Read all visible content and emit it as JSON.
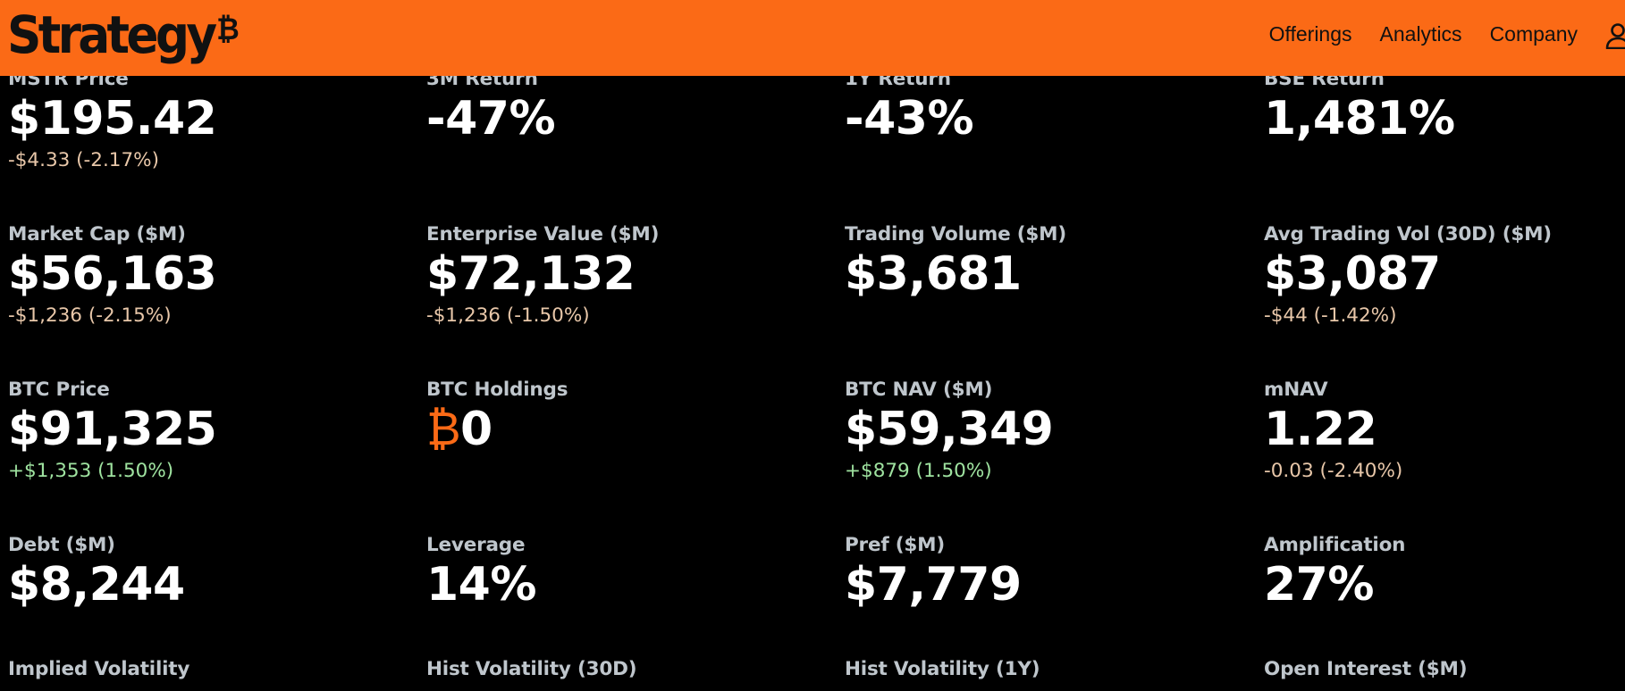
{
  "header": {
    "logo_text": "Strategy",
    "logo_mark": "₿",
    "nav": [
      "Offerings",
      "Analytics",
      "Company"
    ],
    "user_icon": "user-icon",
    "bg_color": "#fb6a16"
  },
  "metrics": [
    {
      "label": "MSTR Price",
      "value": "$195.42",
      "change": "-$4.33 (-2.17%)",
      "trend": "neg"
    },
    {
      "label": "3M Return",
      "value": "-47%",
      "change": "",
      "trend": ""
    },
    {
      "label": "1Y Return",
      "value": "-43%",
      "change": "",
      "trend": ""
    },
    {
      "label": "BSE Return",
      "value": "1,481%",
      "change": "",
      "trend": ""
    },
    {
      "label": "Market Cap ($M)",
      "value": "$56,163",
      "change": "-$1,236 (-2.15%)",
      "trend": "neg"
    },
    {
      "label": "Enterprise Value ($M)",
      "value": "$72,132",
      "change": "-$1,236 (-1.50%)",
      "trend": "neg"
    },
    {
      "label": "Trading Volume ($M)",
      "value": "$3,681",
      "change": "",
      "trend": ""
    },
    {
      "label": "Avg Trading Vol (30D) ($M)",
      "value": "$3,087",
      "change": "-$44 (-1.42%)",
      "trend": "neg"
    },
    {
      "label": "BTC Price",
      "value": "$91,325",
      "change": "+$1,353 (1.50%)",
      "trend": "pos"
    },
    {
      "label": "BTC Holdings",
      "value_prefix": "₿",
      "value": "0",
      "change": "",
      "trend": ""
    },
    {
      "label": "BTC NAV ($M)",
      "value": "$59,349",
      "change": "+$879 (1.50%)",
      "trend": "pos"
    },
    {
      "label": "mNAV",
      "value": "1.22",
      "change": "-0.03 (-2.40%)",
      "trend": "neg"
    },
    {
      "label": "Debt ($M)",
      "value": "$8,244",
      "change": "",
      "trend": ""
    },
    {
      "label": "Leverage",
      "value": "14%",
      "change": "",
      "trend": ""
    },
    {
      "label": "Pref ($M)",
      "value": "$7,779",
      "change": "",
      "trend": ""
    },
    {
      "label": "Amplification",
      "value": "27%",
      "change": "",
      "trend": ""
    },
    {
      "label": "Implied Volatility",
      "value": "",
      "change": "",
      "trend": ""
    },
    {
      "label": "Hist Volatility (30D)",
      "value": "",
      "change": "",
      "trend": ""
    },
    {
      "label": "Hist Volatility (1Y)",
      "value": "",
      "change": "",
      "trend": ""
    },
    {
      "label": "Open Interest ($M)",
      "value": "",
      "change": "",
      "trend": ""
    }
  ]
}
